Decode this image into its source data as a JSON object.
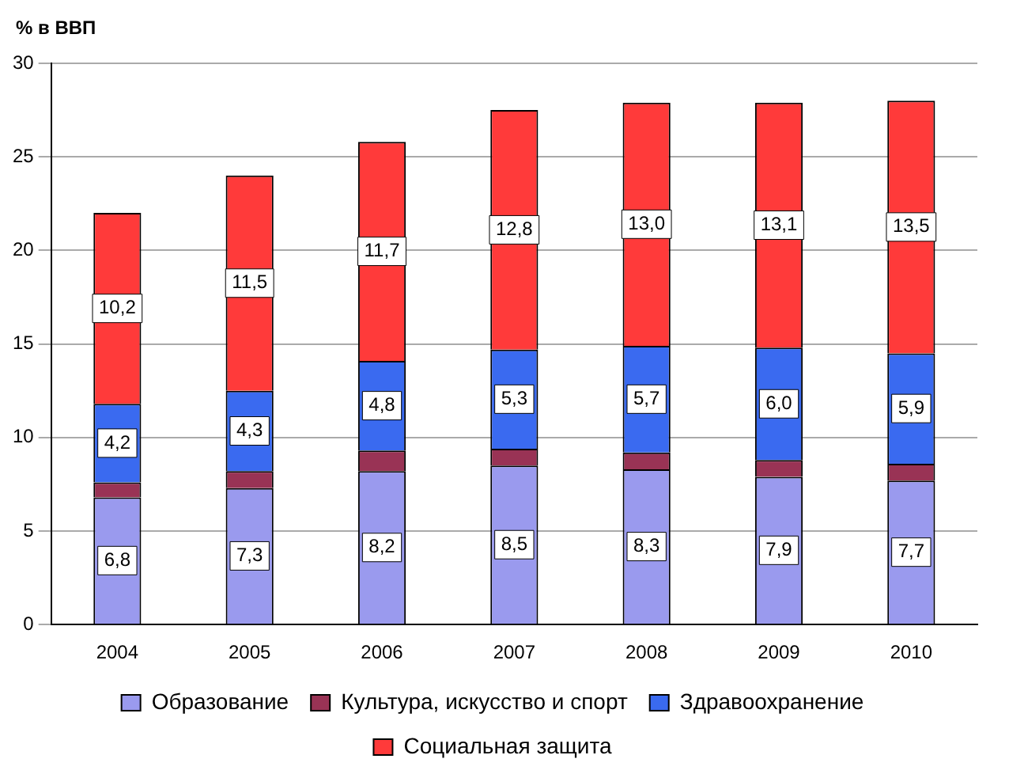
{
  "chart_data": {
    "type": "bar",
    "stacked": true,
    "ylabel": "% в ВВП",
    "categories": [
      "2004",
      "2005",
      "2006",
      "2007",
      "2008",
      "2009",
      "2010"
    ],
    "series": [
      {
        "name": "Образование",
        "color": "#9a9aee",
        "values": [
          6.8,
          7.3,
          8.2,
          8.5,
          8.3,
          7.9,
          7.7
        ],
        "value_labels": [
          "6,8",
          "7,3",
          "8,2",
          "8,5",
          "8,3",
          "7,9",
          "7,7"
        ]
      },
      {
        "name": "Культура, искусство и спорт",
        "color": "#993355",
        "values": [
          0.8,
          0.9,
          1.1,
          0.9,
          0.9,
          0.9,
          0.9
        ]
      },
      {
        "name": "Здравоохранение",
        "color": "#3a6af0",
        "values": [
          4.2,
          4.3,
          4.8,
          5.3,
          5.7,
          6.0,
          5.9
        ],
        "value_labels": [
          "4,2",
          "4,3",
          "4,8",
          "5,3",
          "5,7",
          "6,0",
          "5,9"
        ]
      },
      {
        "name": "Социальная защита",
        "color": "#ff3a3a",
        "values": [
          10.2,
          11.5,
          11.7,
          12.8,
          13.0,
          13.1,
          13.5
        ],
        "value_labels": [
          "10,2",
          "11,5",
          "11,7",
          "12,8",
          "13,0",
          "13,1",
          "13,5"
        ]
      }
    ],
    "ylim": [
      0,
      30
    ],
    "yticks": [
      0,
      5,
      10,
      15,
      20,
      25,
      30
    ],
    "grid": "y",
    "legend": "bottom"
  }
}
